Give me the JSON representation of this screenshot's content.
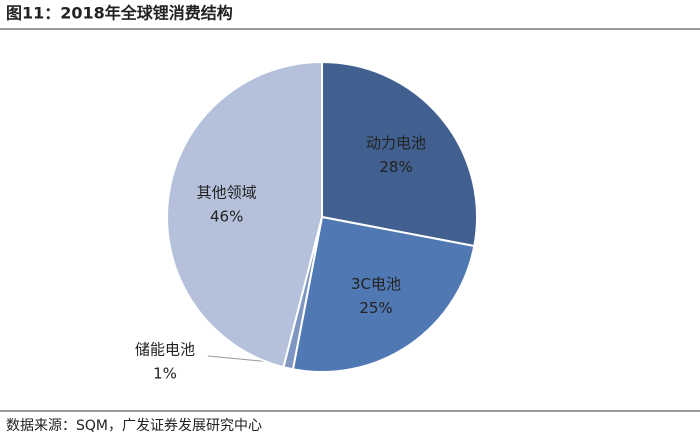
{
  "chart_data": {
    "type": "pie",
    "title": "图11：2018年全球锂消费结构",
    "source": "数据来源：SQM，广发证券发展研究中心",
    "categories": [
      "动力电池",
      "3C电池",
      "储能电池",
      "其他领域"
    ],
    "values": [
      28,
      25,
      1,
      46
    ],
    "value_labels": [
      "28%",
      "25%",
      "1%",
      "46%"
    ],
    "colors": [
      "#41608f",
      "#5079b3",
      "#7f96c2",
      "#b5c1da"
    ]
  }
}
